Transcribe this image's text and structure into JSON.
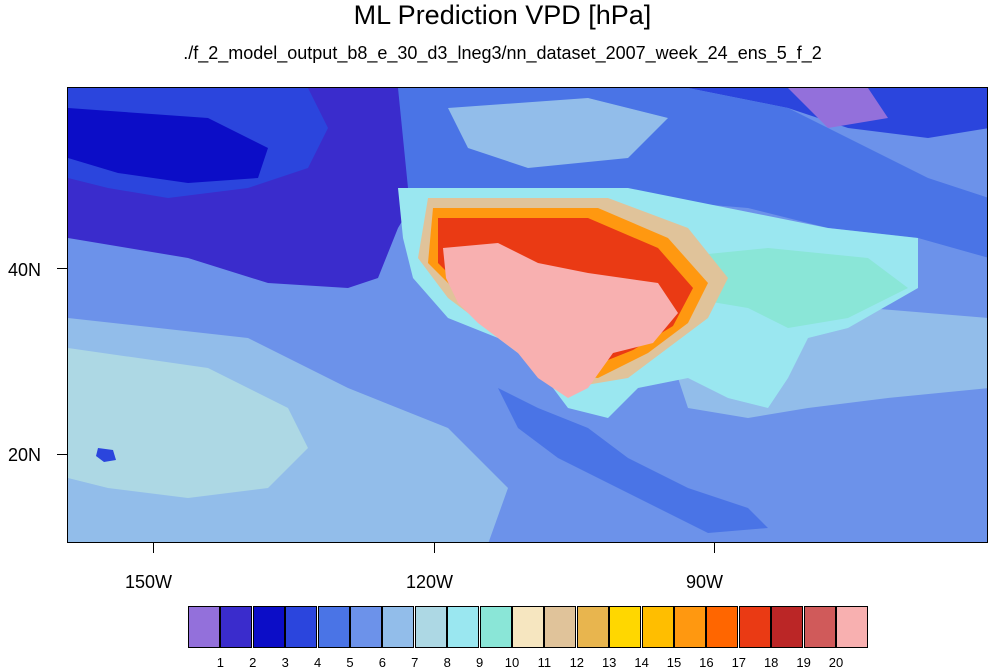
{
  "title": "ML Prediction VPD [hPa]",
  "subtitle": "./f_2_model_output_b8_e_30_d3_lneg3/nn_dataset_2007_week_24_ens_5_f_2",
  "map": {
    "projection": "cylindrical equidistant",
    "lon_range": [
      -161,
      -62
    ],
    "lat_range": [
      11,
      60
    ],
    "x_ticks": [
      "150W",
      "120W",
      "90W"
    ],
    "y_ticks": [
      "40N",
      "20N"
    ]
  },
  "colorbar": {
    "labels": [
      "1",
      "2",
      "3",
      "4",
      "5",
      "6",
      "7",
      "8",
      "9",
      "10",
      "11",
      "12",
      "13",
      "14",
      "15",
      "16",
      "17",
      "18",
      "19",
      "20"
    ],
    "colors": [
      "#9370db",
      "#3a2ccc",
      "#0c0dc7",
      "#2b45dd",
      "#4a74e6",
      "#6c92ea",
      "#92bdea",
      "#add8e4",
      "#9ae7f0",
      "#8ae6d7",
      "#f6e6c0",
      "#e0c39a",
      "#e8b54e",
      "#ffd700",
      "#ffbe00",
      "#ff9810",
      "#ff6600",
      "#ea3a14",
      "#bb2626",
      "#d05a5a",
      "#f8b0b0"
    ]
  },
  "features": {
    "ocean_colors": [
      "#3a2ccc",
      "#2b45dd",
      "#4a74e6",
      "#6c92ea",
      "#92bdea",
      "#add8e4"
    ],
    "hot_region_color": "#f8b0b0"
  }
}
